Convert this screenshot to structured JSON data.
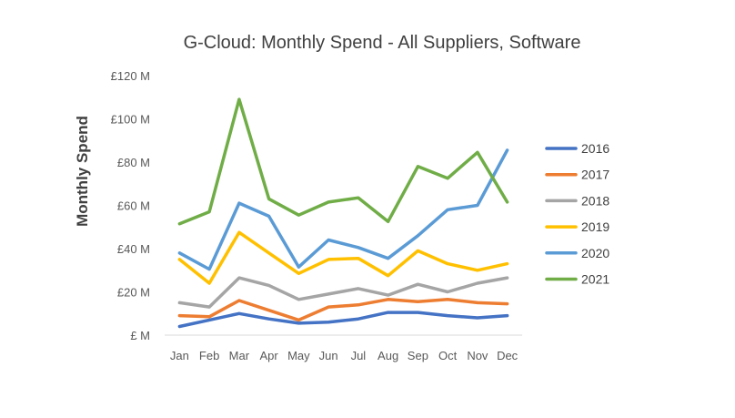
{
  "chart_data": {
    "type": "line",
    "title": "G-Cloud: Monthly Spend - All Suppliers, Software",
    "xlabel": "",
    "ylabel": "Monthly Spend",
    "categories": [
      "Jan",
      "Feb",
      "Mar",
      "Apr",
      "May",
      "Jun",
      "Jul",
      "Aug",
      "Sep",
      "Oct",
      "Nov",
      "Dec"
    ],
    "ylim": [
      0,
      120
    ],
    "yticks": [
      {
        "value": 0,
        "label": "£ M"
      },
      {
        "value": 20,
        "label": "£20 M"
      },
      {
        "value": 40,
        "label": "£40 M"
      },
      {
        "value": 60,
        "label": "£60 M"
      },
      {
        "value": 80,
        "label": "£80 M"
      },
      {
        "value": 100,
        "label": "£100 M"
      },
      {
        "value": 120,
        "label": "£120 M"
      }
    ],
    "grid": false,
    "legend_position": "right",
    "series": [
      {
        "name": "2016",
        "color": "#4472C4",
        "values": [
          4,
          7,
          10,
          7.5,
          5.5,
          6,
          7.5,
          10.5,
          10.5,
          9,
          8,
          9
        ]
      },
      {
        "name": "2017",
        "color": "#ED7D31",
        "values": [
          9,
          8.5,
          16,
          11.5,
          7,
          13,
          14,
          16.5,
          15.5,
          16.5,
          15,
          14.5
        ]
      },
      {
        "name": "2018",
        "color": "#A5A5A5",
        "values": [
          15,
          13,
          26.5,
          23,
          16.5,
          19,
          21.5,
          18.5,
          23.5,
          20,
          24,
          26.5
        ]
      },
      {
        "name": "2019",
        "color": "#FFC000",
        "values": [
          35,
          24,
          47.5,
          38,
          28.5,
          35,
          35.5,
          27.5,
          39,
          33,
          30,
          33
        ]
      },
      {
        "name": "2020",
        "color": "#5B9BD5",
        "values": [
          38,
          30.5,
          61,
          55,
          31.5,
          44,
          40.5,
          35.5,
          46,
          58,
          60,
          85.5
        ]
      },
      {
        "name": "2021",
        "color": "#70AD47",
        "values": [
          51.5,
          57,
          109,
          63,
          55.5,
          61.5,
          63.5,
          52.5,
          78,
          72.5,
          84.5,
          61.5
        ]
      }
    ]
  }
}
